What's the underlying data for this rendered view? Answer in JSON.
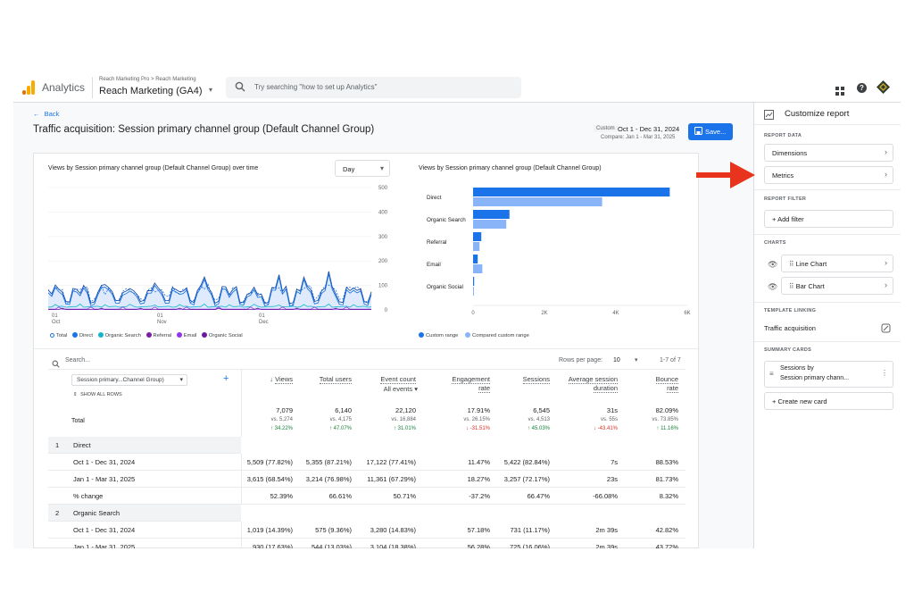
{
  "app": {
    "name": "Analytics",
    "breadcrumb": "Reach Marketing Pro > Reach Marketing",
    "property": "Reach Marketing (GA4)"
  },
  "search": {
    "placeholder": "Try searching \"how to set up Analytics\""
  },
  "nav": {
    "back": "Back"
  },
  "page": {
    "title": "Traffic acquisition: Session primary channel group (Default Channel Group)"
  },
  "daterange": {
    "custom": "Custom",
    "range": "Oct 1 - Dec 31, 2024",
    "compare": "Compare: Jan 1 - Mar 31, 2025"
  },
  "save_label": "Save...",
  "line_chart": {
    "title": "Views by Session primary channel group (Default Channel Group) over time",
    "granularity": "Day",
    "y_ticks": [
      "500",
      "400",
      "300",
      "200",
      "100",
      "0"
    ],
    "x_ticks": [
      {
        "d": "01",
        "m": "Oct"
      },
      {
        "d": "01",
        "m": "Nov"
      },
      {
        "d": "01",
        "m": "Dec"
      }
    ],
    "legend": [
      "Total",
      "Direct",
      "Organic Search",
      "Referral",
      "Email",
      "Organic Social"
    ]
  },
  "bar_chart": {
    "title": "Views by Session primary channel group (Default Channel Group)",
    "x_ticks": [
      "0",
      "2K",
      "4K",
      "6K"
    ],
    "legend": [
      "Custom range",
      "Compared custom range"
    ]
  },
  "chart_data": [
    {
      "type": "bar",
      "title": "Views by Session primary channel group (Default Channel Group)",
      "categories": [
        "Direct",
        "Organic Search",
        "Referral",
        "Email",
        "Organic Social"
      ],
      "series": [
        {
          "name": "Custom range",
          "values": [
            5509,
            1019,
            230,
            130,
            30
          ]
        },
        {
          "name": "Compared custom range",
          "values": [
            3615,
            930,
            180,
            260,
            15
          ]
        }
      ],
      "xlim": [
        0,
        6000
      ]
    }
  ],
  "table": {
    "search_placeholder": "Search...",
    "rows_per_page_label": "Rows per page:",
    "rows_per_page": "10",
    "pagination": "1-7 of 7",
    "dimension": "Session primary...Channel Group)",
    "show_all_rows": "SHOW ALL ROWS",
    "headers": [
      {
        "l1": "Views",
        "l2": ""
      },
      {
        "l1": "Total users",
        "l2": ""
      },
      {
        "l1": "Event count",
        "l2": "All events"
      },
      {
        "l1": "Engagement",
        "l2": "rate"
      },
      {
        "l1": "Sessions",
        "l2": ""
      },
      {
        "l1": "Average session",
        "l2": "duration"
      },
      {
        "l1": "Bounce",
        "l2": "rate"
      }
    ],
    "total_label": "Total",
    "totals": [
      {
        "v": "7,079",
        "vs": "vs. 5,274",
        "ch": "↑ 34.22%",
        "dir": "up"
      },
      {
        "v": "6,140",
        "vs": "vs. 4,175",
        "ch": "↑ 47.07%",
        "dir": "up"
      },
      {
        "v": "22,120",
        "vs": "vs. 16,884",
        "ch": "↑ 31.01%",
        "dir": "up"
      },
      {
        "v": "17.91%",
        "vs": "vs. 26.15%",
        "ch": "↓ -31.51%",
        "dir": "down"
      },
      {
        "v": "6,545",
        "vs": "vs. 4,513",
        "ch": "↑ 45.03%",
        "dir": "up"
      },
      {
        "v": "31s",
        "vs": "vs. 55s",
        "ch": "↓ -43.41%",
        "dir": "down"
      },
      {
        "v": "82.09%",
        "vs": "vs. 73.85%",
        "ch": "↑ 11.16%",
        "dir": "up"
      }
    ],
    "groups": [
      {
        "index": "1",
        "name": "Direct",
        "rows": [
          {
            "label": "Oct 1 - Dec 31, 2024",
            "cells": [
              "5,509 (77.82%)",
              "5,355 (87.21%)",
              "17,122 (77.41%)",
              "11.47%",
              "5,422 (82.84%)",
              "7s",
              "88.53%"
            ]
          },
          {
            "label": "Jan 1 - Mar 31, 2025",
            "cells": [
              "3,615 (68.54%)",
              "3,214 (76.98%)",
              "11,361 (67.29%)",
              "18.27%",
              "3,257 (72.17%)",
              "23s",
              "81.73%"
            ]
          },
          {
            "label": "% change",
            "cells": [
              "52.39%",
              "66.61%",
              "50.71%",
              "-37.2%",
              "66.47%",
              "-66.08%",
              "8.32%"
            ]
          }
        ]
      },
      {
        "index": "2",
        "name": "Organic Search",
        "rows": [
          {
            "label": "Oct 1 - Dec 31, 2024",
            "cells": [
              "1,019 (14.39%)",
              "575 (9.36%)",
              "3,280 (14.83%)",
              "57.18%",
              "731 (11.17%)",
              "2m 39s",
              "42.82%"
            ]
          },
          {
            "label": "Jan 1 - Mar 31, 2025",
            "cells": [
              "930 (17.63%)",
              "544 (13.03%)",
              "3,104 (18.38%)",
              "56.28%",
              "725 (16.06%)",
              "2m 39s",
              "43.72%"
            ]
          }
        ]
      }
    ]
  },
  "panel": {
    "title": "Customize report",
    "report_data": "REPORT DATA",
    "dimensions": "Dimensions",
    "metrics": "Metrics",
    "report_filter": "REPORT FILTER",
    "add_filter": "Add filter",
    "charts": "CHARTS",
    "line_chart": "Line Chart",
    "bar_chart": "Bar Chart",
    "template_linking": "TEMPLATE LINKING",
    "traffic_acquisition": "Traffic acquisition",
    "summary_cards": "SUMMARY CARDS",
    "card_line1": "Sessions by",
    "card_line2": "Session primary chann...",
    "create_card": "Create new card"
  },
  "colors": {
    "accent": "#1a73e8",
    "primary_bar": "#1a73e8",
    "compare_bar": "#8ab4f8",
    "arrow": "#e8341c"
  }
}
